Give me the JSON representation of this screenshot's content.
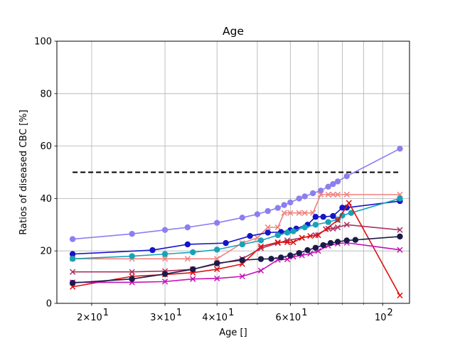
{
  "chart_data": {
    "type": "line",
    "title": "Age",
    "xlabel": "Age []",
    "ylabel": "Ratios of diseased CBC [%]",
    "xscale": "log",
    "xlim": [
      16.5,
      116
    ],
    "ylim": [
      0,
      100
    ],
    "grid": true,
    "legend": "none",
    "x_tick_labels": [
      {
        "value": 20,
        "base": "2×10",
        "exp": "1"
      },
      {
        "value": 30,
        "base": "3×10",
        "exp": "1"
      },
      {
        "value": 40,
        "base": "4×10",
        "exp": "1"
      },
      {
        "value": 60,
        "base": "6×10",
        "exp": "1"
      },
      {
        "value": 100,
        "base": "10",
        "exp": "2"
      }
    ],
    "y_ticks": [
      0,
      20,
      40,
      60,
      80,
      100
    ],
    "reference_line": {
      "y": 50,
      "x": [
        18,
        110
      ],
      "color": "#000000",
      "style": "dashed"
    },
    "series": [
      {
        "color": "#8b7ff0",
        "marker": "circle",
        "points": [
          [
            18,
            24.5
          ],
          [
            25,
            26.5
          ],
          [
            30,
            28
          ],
          [
            34,
            29
          ],
          [
            40,
            30.7
          ],
          [
            46,
            32.7
          ],
          [
            50,
            34
          ],
          [
            53,
            35.2
          ],
          [
            56,
            36.4
          ],
          [
            58,
            37.5
          ],
          [
            60,
            38.5
          ],
          [
            63,
            40
          ],
          [
            65,
            40.8
          ],
          [
            68,
            42
          ],
          [
            71,
            43
          ],
          [
            74,
            44.5
          ],
          [
            76,
            45.5
          ],
          [
            78,
            46.5
          ],
          [
            82,
            48.5
          ],
          [
            110,
            59
          ]
        ]
      },
      {
        "color": "#f08080",
        "marker": "x",
        "points": [
          [
            18,
            17
          ],
          [
            25,
            17
          ],
          [
            30,
            17
          ],
          [
            34,
            17
          ],
          [
            40,
            17
          ],
          [
            46,
            23
          ],
          [
            50,
            25
          ],
          [
            53,
            29
          ],
          [
            56,
            29
          ],
          [
            58,
            34.5
          ],
          [
            60,
            34.5
          ],
          [
            63,
            34.5
          ],
          [
            65,
            34.5
          ],
          [
            68,
            34.5
          ],
          [
            71,
            41.5
          ],
          [
            74,
            41.5
          ],
          [
            76,
            41.5
          ],
          [
            78,
            41.5
          ],
          [
            82,
            41.5
          ],
          [
            110,
            41.5
          ]
        ]
      },
      {
        "color": "#1414c8",
        "marker": "circle",
        "points": [
          [
            18,
            18.8
          ],
          [
            28,
            20.3
          ],
          [
            34,
            22.5
          ],
          [
            42,
            23
          ],
          [
            48,
            25.7
          ],
          [
            53,
            27
          ],
          [
            57,
            27.2
          ],
          [
            60,
            27.9
          ],
          [
            62,
            28.5
          ],
          [
            66,
            30
          ],
          [
            69,
            33
          ],
          [
            72,
            33
          ],
          [
            76,
            33.3
          ],
          [
            80,
            36.5
          ],
          [
            82,
            36.5
          ],
          [
            110,
            39
          ]
        ]
      },
      {
        "color": "#17a2b8",
        "marker": "circle",
        "points": [
          [
            18,
            17
          ],
          [
            25,
            18
          ],
          [
            30,
            18.8
          ],
          [
            35,
            19.5
          ],
          [
            40,
            20.5
          ],
          [
            46,
            22.5
          ],
          [
            51,
            24
          ],
          [
            56,
            26
          ],
          [
            59,
            27
          ],
          [
            61,
            27.5
          ],
          [
            65,
            29
          ],
          [
            69,
            30
          ],
          [
            74,
            31
          ],
          [
            78,
            32
          ],
          [
            80,
            33.5
          ],
          [
            84,
            34.5
          ],
          [
            110,
            40
          ]
        ]
      },
      {
        "color": "#a83262",
        "marker": "x",
        "points": [
          [
            18,
            12
          ],
          [
            25,
            12
          ],
          [
            30,
            12.3
          ],
          [
            35,
            13
          ],
          [
            40,
            15
          ],
          [
            46,
            17
          ],
          [
            51,
            21
          ],
          [
            56,
            23
          ],
          [
            59,
            24
          ],
          [
            64,
            25
          ],
          [
            69,
            26
          ],
          [
            74,
            28.5
          ],
          [
            76,
            28.5
          ],
          [
            78,
            29
          ],
          [
            82,
            30
          ],
          [
            110,
            28
          ]
        ]
      },
      {
        "color": "#e01010",
        "marker": "x",
        "points": [
          [
            18,
            6.3
          ],
          [
            25,
            10.3
          ],
          [
            30,
            11
          ],
          [
            35,
            11.7
          ],
          [
            40,
            13
          ],
          [
            46,
            15
          ],
          [
            51,
            21.7
          ],
          [
            56,
            23.3
          ],
          [
            59,
            23.3
          ],
          [
            61,
            23.3
          ],
          [
            64,
            25
          ],
          [
            67,
            25.7
          ],
          [
            70,
            26
          ],
          [
            73,
            28.3
          ],
          [
            78,
            31.7
          ],
          [
            83,
            38.3
          ],
          [
            110,
            3
          ]
        ]
      },
      {
        "color": "#c410b4",
        "marker": "x",
        "points": [
          [
            18,
            8
          ],
          [
            25,
            8
          ],
          [
            30,
            8.3
          ],
          [
            35,
            9.3
          ],
          [
            40,
            9.5
          ],
          [
            46,
            10.3
          ],
          [
            51,
            12.5
          ],
          [
            56,
            16.6
          ],
          [
            59,
            16.8
          ],
          [
            61,
            17.8
          ],
          [
            64,
            18.3
          ],
          [
            67,
            19
          ],
          [
            70,
            20
          ],
          [
            74,
            22
          ],
          [
            78,
            22.8
          ],
          [
            82,
            23.1
          ],
          [
            110,
            20.4
          ]
        ]
      },
      {
        "color": "#1a1a4a",
        "marker": "circle",
        "points": [
          [
            18,
            7.8
          ],
          [
            25,
            9.3
          ],
          [
            30,
            11.2
          ],
          [
            35,
            13
          ],
          [
            40,
            15.3
          ],
          [
            46,
            16.5
          ],
          [
            51,
            16.9
          ],
          [
            54,
            17
          ],
          [
            57,
            17.5
          ],
          [
            60,
            18.3
          ],
          [
            63,
            19.2
          ],
          [
            66,
            20.3
          ],
          [
            69,
            21.2
          ],
          [
            72,
            22.2
          ],
          [
            75,
            23
          ],
          [
            78,
            23.5
          ],
          [
            82,
            24
          ],
          [
            86,
            24.2
          ],
          [
            110,
            25.5
          ]
        ]
      }
    ]
  }
}
